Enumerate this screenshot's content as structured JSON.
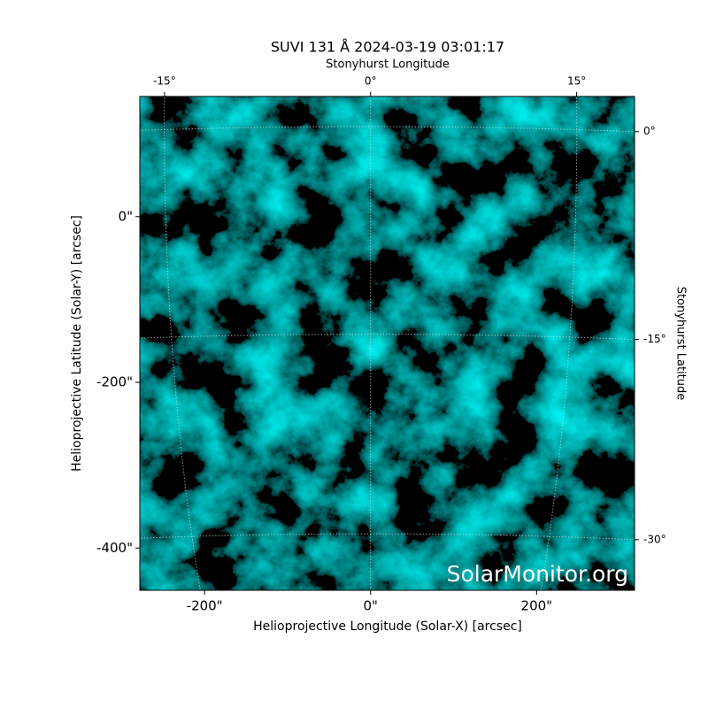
{
  "chart_data": {
    "type": "image",
    "title": "SUVI 131 Å 2024-03-19 03:01:17",
    "x_label": "Helioprojective Longitude (Solar-X) [arcsec]",
    "y_label": "Helioprojective Latitude (Solar-Y) [arcsec]",
    "top_label": "Stonyhurst Longitude",
    "right_label": "Stonyhurst Latitude",
    "watermark": "SolarMonitor.org",
    "xlim": [
      -278,
      318
    ],
    "ylim": [
      -451,
      145
    ],
    "xticks": [
      {
        "value": -200,
        "label": "-200\""
      },
      {
        "value": 0,
        "label": "0\""
      },
      {
        "value": 200,
        "label": "200\""
      }
    ],
    "yticks": [
      {
        "value": 0,
        "label": "0\""
      },
      {
        "value": -200,
        "label": "-200\""
      },
      {
        "value": -400,
        "label": "-400\""
      }
    ],
    "lon_ticks": [
      {
        "value": -15,
        "label": "-15°"
      },
      {
        "value": 0,
        "label": "0°"
      },
      {
        "value": 15,
        "label": "15°"
      }
    ],
    "lat_ticks": [
      {
        "value": 0,
        "label": "0°"
      },
      {
        "value": -15,
        "label": "-15°"
      },
      {
        "value": -30,
        "label": "-30°"
      }
    ],
    "color": "#00c8c8"
  }
}
